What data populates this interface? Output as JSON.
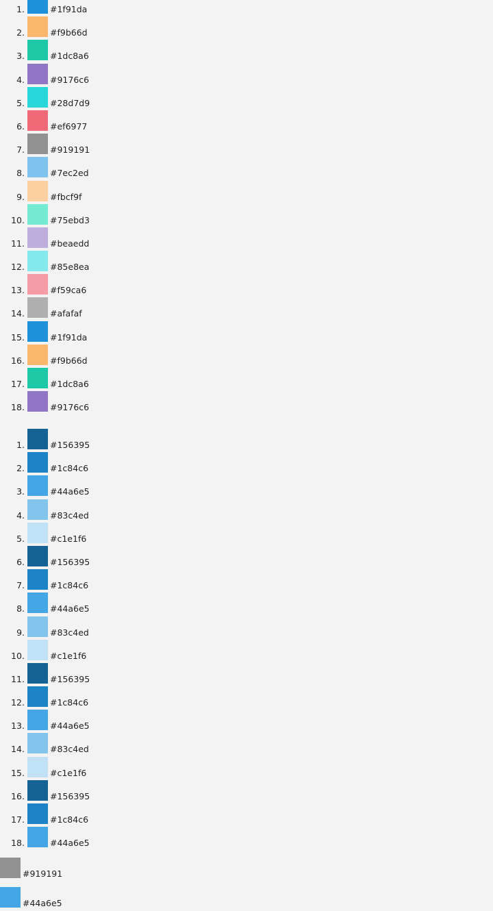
{
  "palette_categorical": [
    {
      "index": "1.",
      "color": "#1f91da"
    },
    {
      "index": "2.",
      "color": "#f9b66d"
    },
    {
      "index": "3.",
      "color": "#1dc8a6"
    },
    {
      "index": "4.",
      "color": "#9176c6"
    },
    {
      "index": "5.",
      "color": "#28d7d9"
    },
    {
      "index": "6.",
      "color": "#ef6977"
    },
    {
      "index": "7.",
      "color": "#919191"
    },
    {
      "index": "8.",
      "color": "#7ec2ed"
    },
    {
      "index": "9.",
      "color": "#fbcf9f"
    },
    {
      "index": "10.",
      "color": "#75ebd3"
    },
    {
      "index": "11.",
      "color": "#beaedd"
    },
    {
      "index": "12.",
      "color": "#85e8ea"
    },
    {
      "index": "13.",
      "color": "#f59ca6"
    },
    {
      "index": "14.",
      "color": "#afafaf"
    },
    {
      "index": "15.",
      "color": "#1f91da"
    },
    {
      "index": "16.",
      "color": "#f9b66d"
    },
    {
      "index": "17.",
      "color": "#1dc8a6"
    },
    {
      "index": "18.",
      "color": "#9176c6"
    }
  ],
  "palette_sequential": [
    {
      "index": "1.",
      "color": "#156395"
    },
    {
      "index": "2.",
      "color": "#1c84c6"
    },
    {
      "index": "3.",
      "color": "#44a6e5"
    },
    {
      "index": "4.",
      "color": "#83c4ed"
    },
    {
      "index": "5.",
      "color": "#c1e1f6"
    },
    {
      "index": "6.",
      "color": "#156395"
    },
    {
      "index": "7.",
      "color": "#1c84c6"
    },
    {
      "index": "8.",
      "color": "#44a6e5"
    },
    {
      "index": "9.",
      "color": "#83c4ed"
    },
    {
      "index": "10.",
      "color": "#c1e1f6"
    },
    {
      "index": "11.",
      "color": "#156395"
    },
    {
      "index": "12.",
      "color": "#1c84c6"
    },
    {
      "index": "13.",
      "color": "#44a6e5"
    },
    {
      "index": "14.",
      "color": "#83c4ed"
    },
    {
      "index": "15.",
      "color": "#c1e1f6"
    },
    {
      "index": "16.",
      "color": "#156395"
    },
    {
      "index": "17.",
      "color": "#1c84c6"
    },
    {
      "index": "18.",
      "color": "#44a6e5"
    }
  ],
  "single_neutral": {
    "color": "#919191"
  },
  "single_primary": {
    "color": "#44a6e5"
  }
}
